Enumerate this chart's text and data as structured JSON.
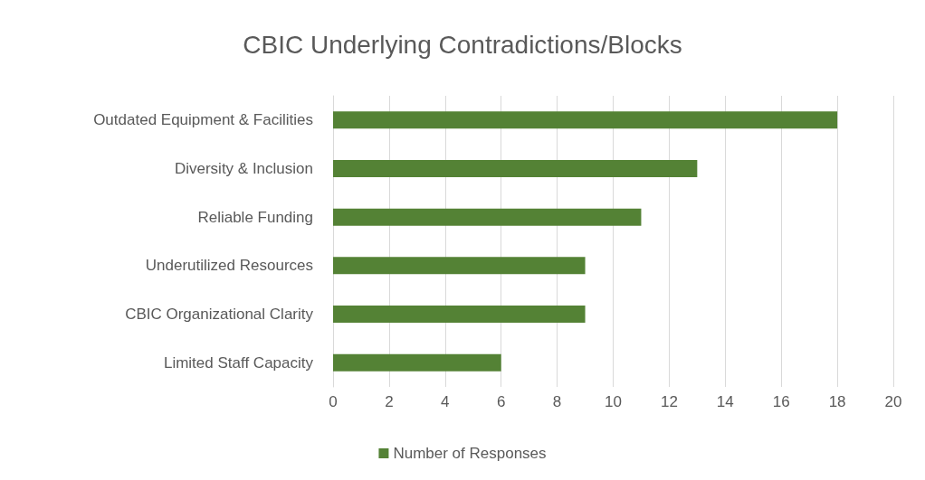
{
  "chart_data": {
    "type": "bar",
    "orientation": "horizontal",
    "title": "CBIC Underlying Contradictions/Blocks",
    "categories": [
      "Outdated Equipment & Facilities",
      "Diversity & Inclusion",
      "Reliable Funding",
      "Underutilized Resources",
      "CBIC Organizational Clarity",
      "Limited Staff Capacity"
    ],
    "series": [
      {
        "name": "Number of Responses",
        "color": "#548235",
        "values": [
          18,
          13,
          11,
          9,
          9,
          6
        ]
      }
    ],
    "xlim": [
      0,
      20
    ],
    "xticks": [
      0,
      2,
      4,
      6,
      8,
      10,
      12,
      14,
      16,
      18,
      20
    ],
    "grid": "x",
    "legend": "bottom"
  }
}
